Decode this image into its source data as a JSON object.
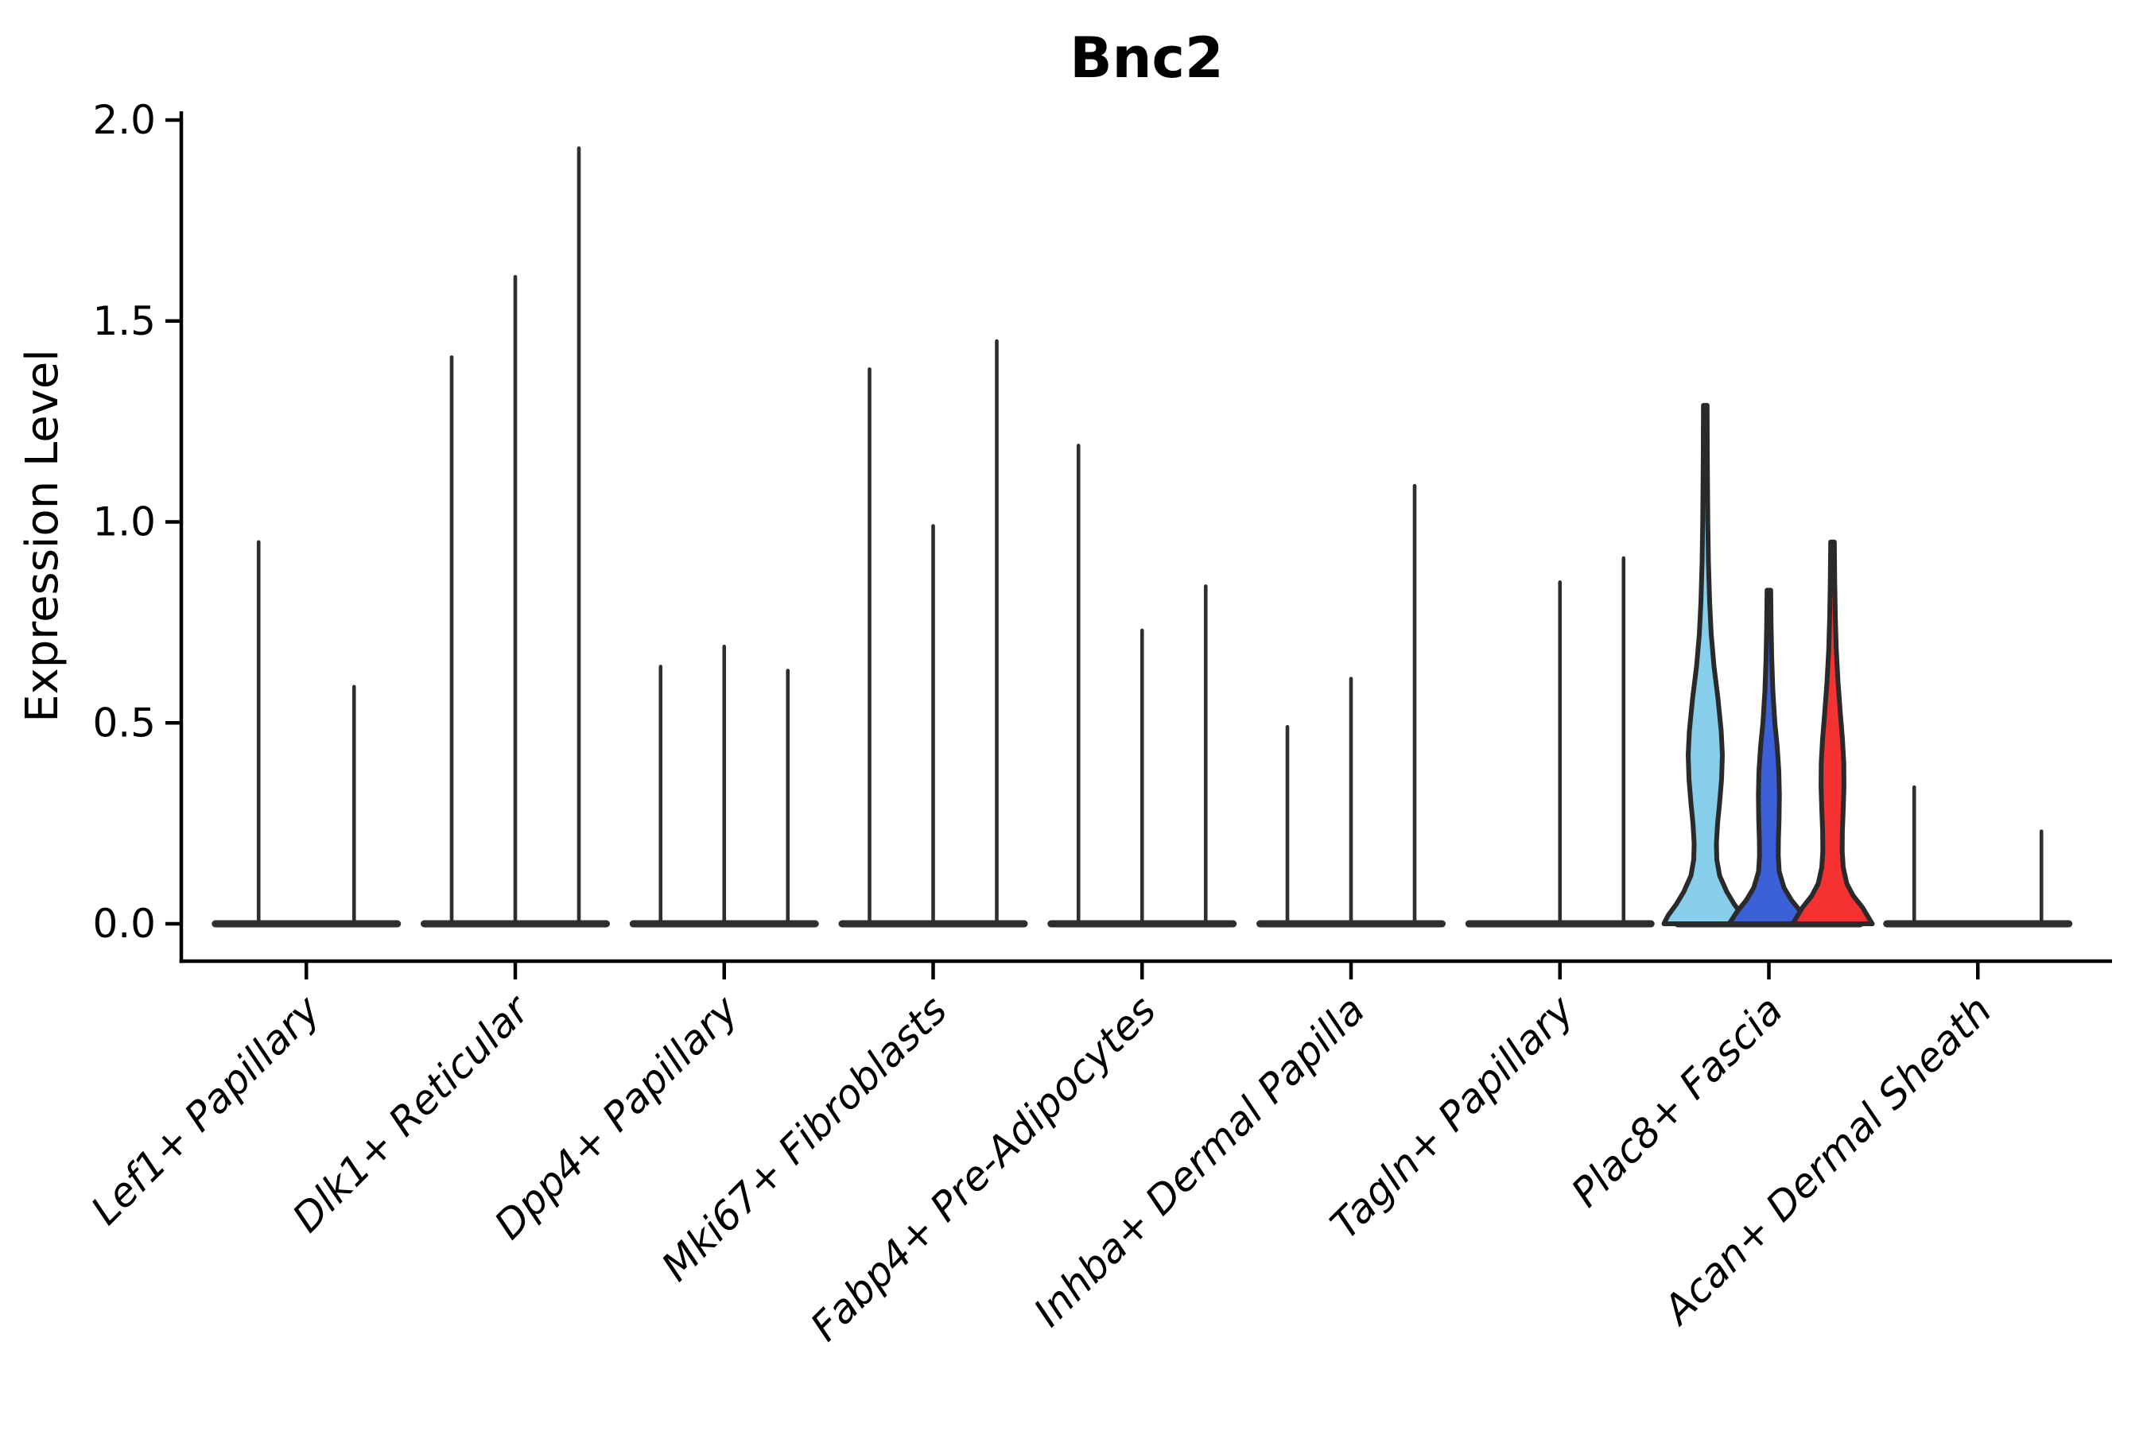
{
  "figure": {
    "title": "Bnc2",
    "ylabel": "Expression Level"
  },
  "chart_data": {
    "type": "violin",
    "title": "Bnc2",
    "xlabel": "",
    "ylabel": "Expression Level",
    "ylim": [
      0.0,
      2.0
    ],
    "yticks": [
      0.0,
      0.5,
      1.0,
      1.5,
      2.0
    ],
    "ytick_labels": [
      "0.0",
      "0.5",
      "1.0",
      "1.5",
      "2.0"
    ],
    "grid": false,
    "legend_position": "none",
    "x_tick_rotation_deg": 45,
    "x_tick_style": "italic",
    "categories": [
      "Lef1+ Papillary",
      "Dlk1+ Reticular",
      "Dpp4+ Papillary",
      "Mki67+ Fibroblasts",
      "Fabp4+ Pre-Adipocytes",
      "Inhba+ Dermal Papilla",
      "Tagln+ Papillary",
      "Plac8+ Fascia",
      "Acan+ Dermal Sheath"
    ],
    "groups": [
      {
        "category": "Lef1+ Papillary",
        "violins": [
          {
            "max_expression": 0.95,
            "style": "collapsed"
          },
          {
            "max_expression": 0.59,
            "style": "collapsed"
          }
        ]
      },
      {
        "category": "Dlk1+ Reticular",
        "violins": [
          {
            "max_expression": 1.41,
            "style": "collapsed"
          },
          {
            "max_expression": 1.61,
            "style": "collapsed"
          },
          {
            "max_expression": 1.93,
            "style": "collapsed"
          }
        ]
      },
      {
        "category": "Dpp4+ Papillary",
        "violins": [
          {
            "max_expression": 0.64,
            "style": "collapsed"
          },
          {
            "max_expression": 0.69,
            "style": "collapsed"
          },
          {
            "max_expression": 0.63,
            "style": "collapsed"
          }
        ]
      },
      {
        "category": "Mki67+ Fibroblasts",
        "violins": [
          {
            "max_expression": 1.38,
            "style": "collapsed"
          },
          {
            "max_expression": 0.99,
            "style": "collapsed"
          },
          {
            "max_expression": 1.45,
            "style": "collapsed"
          }
        ]
      },
      {
        "category": "Fabp4+ Pre-Adipocytes",
        "violins": [
          {
            "max_expression": 1.19,
            "style": "collapsed"
          },
          {
            "max_expression": 0.73,
            "style": "collapsed"
          },
          {
            "max_expression": 0.84,
            "style": "collapsed"
          }
        ]
      },
      {
        "category": "Inhba+ Dermal Papilla",
        "violins": [
          {
            "max_expression": 0.49,
            "style": "collapsed"
          },
          {
            "max_expression": 0.61,
            "style": "collapsed"
          },
          {
            "max_expression": 1.09,
            "style": "collapsed"
          }
        ]
      },
      {
        "category": "Tagln+ Papillary",
        "violins": [
          {
            "max_expression": 0.0,
            "style": "flat"
          },
          {
            "max_expression": 0.85,
            "style": "collapsed"
          },
          {
            "max_expression": 0.91,
            "style": "collapsed"
          }
        ]
      },
      {
        "category": "Plac8+ Fascia",
        "violins": [
          {
            "max_expression": 1.29,
            "style": "filled",
            "color": "#87CEEB",
            "profile": [
              [
                1.29,
                2.3
              ],
              [
                1.15,
                2.6
              ],
              [
                1.0,
                3.2
              ],
              [
                0.9,
                4.0
              ],
              [
                0.8,
                5.5
              ],
              [
                0.72,
                7.5
              ],
              [
                0.64,
                11
              ],
              [
                0.56,
                16
              ],
              [
                0.48,
                20
              ],
              [
                0.42,
                21.5
              ],
              [
                0.36,
                20.5
              ],
              [
                0.3,
                18
              ],
              [
                0.25,
                15.5
              ],
              [
                0.2,
                14
              ],
              [
                0.16,
                14.5
              ],
              [
                0.12,
                18
              ],
              [
                0.08,
                27
              ],
              [
                0.05,
                36
              ],
              [
                0.02,
                47
              ],
              [
                0.0,
                52
              ]
            ]
          },
          {
            "max_expression": 0.83,
            "style": "filled",
            "color": "#3B60D8",
            "profile": [
              [
                0.83,
                2.3
              ],
              [
                0.74,
                2.8
              ],
              [
                0.66,
                3.6
              ],
              [
                0.58,
                5
              ],
              [
                0.5,
                7.5
              ],
              [
                0.44,
                10.5
              ],
              [
                0.38,
                12.5
              ],
              [
                0.32,
                13.2
              ],
              [
                0.26,
                12.8
              ],
              [
                0.21,
                12
              ],
              [
                0.17,
                11.8
              ],
              [
                0.13,
                13
              ],
              [
                0.09,
                19
              ],
              [
                0.06,
                28
              ],
              [
                0.03,
                40
              ],
              [
                0.0,
                50
              ]
            ]
          },
          {
            "max_expression": 0.95,
            "style": "filled",
            "color": "#F53131",
            "profile": [
              [
                0.95,
                2.3
              ],
              [
                0.85,
                2.8
              ],
              [
                0.76,
                3.6
              ],
              [
                0.68,
                4.8
              ],
              [
                0.6,
                7
              ],
              [
                0.52,
                10
              ],
              [
                0.46,
                12.5
              ],
              [
                0.4,
                14.2
              ],
              [
                0.34,
                14.4
              ],
              [
                0.28,
                13.4
              ],
              [
                0.23,
                12.4
              ],
              [
                0.18,
                12.2
              ],
              [
                0.14,
                13.5
              ],
              [
                0.1,
                18
              ],
              [
                0.07,
                26
              ],
              [
                0.04,
                38
              ],
              [
                0.0,
                50
              ]
            ]
          }
        ]
      },
      {
        "category": "Acan+ Dermal Sheath",
        "violins": [
          {
            "max_expression": 0.34,
            "style": "collapsed"
          },
          {
            "max_expression": 0.0,
            "style": "flat"
          },
          {
            "max_expression": 0.23,
            "style": "collapsed"
          }
        ]
      }
    ],
    "colors": {
      "collapsed_violin": "#2e2e2e",
      "violin_outline": "#2a2a2a",
      "axis": "#000000",
      "highlight_skyblue": "#87CEEB",
      "highlight_blue": "#3B60D8",
      "highlight_red": "#F53131"
    }
  }
}
